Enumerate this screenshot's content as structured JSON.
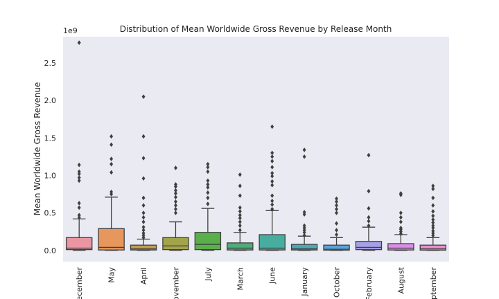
{
  "chart_data": {
    "type": "box",
    "title": "Distribution of Mean Worldwide Gross Revenue by Release Month",
    "xlabel": "",
    "ylabel": "Mean Worldwide Gross Revenue",
    "y_offset_label": "1e9",
    "y_unit_scale": 1000000000,
    "ylim": [
      -0.15,
      2.85
    ],
    "y_ticks": [
      0.0,
      0.5,
      1.0,
      1.5,
      2.0,
      2.5
    ],
    "y_tick_labels": [
      "0.0",
      "0.5",
      "1.0",
      "1.5",
      "2.0",
      "2.5"
    ],
    "grid": false,
    "background": "#eaeaf2",
    "categories": [
      "December",
      "May",
      "April",
      "November",
      "July",
      "March",
      "June",
      "January",
      "October",
      "February",
      "August",
      "September"
    ],
    "tick_labels_visible": [
      "ecember",
      "May",
      "April",
      "ovember",
      "July",
      "March",
      "June",
      "January",
      "October",
      "February",
      "August",
      "eptember"
    ],
    "colors": [
      "#ea96a3",
      "#e7975c",
      "#c39e4d",
      "#a3a44a",
      "#59b04a",
      "#4fad7b",
      "#47ad9f",
      "#4ca8b8",
      "#58a4dc",
      "#a6a0e6",
      "#da8ee7",
      "#ea8fd0"
    ],
    "series": [
      {
        "name": "December",
        "min": 0.0,
        "q1": 0.01,
        "median": 0.03,
        "q3": 0.17,
        "max": 0.42,
        "outliers": [
          0.44,
          0.47,
          0.57,
          0.63,
          0.93,
          0.97,
          1.02,
          1.05,
          1.14,
          2.77
        ]
      },
      {
        "name": "May",
        "min": 0.0,
        "q1": 0.005,
        "median": 0.04,
        "q3": 0.29,
        "max": 0.71,
        "outliers": [
          0.75,
          0.78,
          1.04,
          1.15,
          1.22,
          1.41,
          1.52
        ]
      },
      {
        "name": "April",
        "min": 0.0,
        "q1": 0.005,
        "median": 0.02,
        "q3": 0.07,
        "max": 0.15,
        "outliers": [
          0.17,
          0.2,
          0.23,
          0.27,
          0.31,
          0.38,
          0.44,
          0.5,
          0.6,
          0.7,
          0.96,
          1.23,
          1.52,
          2.05
        ]
      },
      {
        "name": "November",
        "min": 0.0,
        "q1": 0.01,
        "median": 0.06,
        "q3": 0.17,
        "max": 0.38,
        "outliers": [
          0.5,
          0.55,
          0.6,
          0.65,
          0.71,
          0.76,
          0.8,
          0.85,
          0.88,
          1.1
        ]
      },
      {
        "name": "July",
        "min": 0.0,
        "q1": 0.01,
        "median": 0.08,
        "q3": 0.24,
        "max": 0.56,
        "outliers": [
          0.62,
          0.7,
          0.77,
          0.84,
          0.88,
          0.93,
          1.05,
          1.11,
          1.15
        ]
      },
      {
        "name": "March",
        "min": 0.0,
        "q1": 0.005,
        "median": 0.03,
        "q3": 0.1,
        "max": 0.24,
        "outliers": [
          0.27,
          0.33,
          0.38,
          0.43,
          0.47,
          0.52,
          0.57,
          0.73,
          0.86,
          1.01
        ]
      },
      {
        "name": "June",
        "min": 0.0,
        "q1": 0.005,
        "median": 0.03,
        "q3": 0.21,
        "max": 0.53,
        "outliers": [
          0.55,
          0.61,
          0.66,
          0.73,
          0.87,
          0.92,
          0.99,
          1.03,
          1.11,
          1.19,
          1.25,
          1.3,
          1.65
        ]
      },
      {
        "name": "January",
        "min": 0.0,
        "q1": 0.005,
        "median": 0.02,
        "q3": 0.08,
        "max": 0.19,
        "outliers": [
          0.2,
          0.24,
          0.27,
          0.3,
          0.33,
          0.48,
          0.51,
          1.25,
          1.34
        ]
      },
      {
        "name": "October",
        "min": 0.0,
        "q1": 0.003,
        "median": 0.015,
        "q3": 0.07,
        "max": 0.17,
        "outliers": [
          0.21,
          0.27,
          0.36,
          0.5,
          0.55,
          0.6,
          0.65,
          0.69
        ]
      },
      {
        "name": "February",
        "min": 0.0,
        "q1": 0.01,
        "median": 0.04,
        "q3": 0.12,
        "max": 0.31,
        "outliers": [
          0.33,
          0.39,
          0.44,
          0.56,
          0.79,
          1.27
        ]
      },
      {
        "name": "August",
        "min": 0.0,
        "q1": 0.005,
        "median": 0.03,
        "q3": 0.09,
        "max": 0.21,
        "outliers": [
          0.22,
          0.25,
          0.28,
          0.3,
          0.38,
          0.44,
          0.5,
          0.74,
          0.76
        ]
      },
      {
        "name": "September",
        "min": 0.0,
        "q1": 0.003,
        "median": 0.02,
        "q3": 0.07,
        "max": 0.17,
        "outliers": [
          0.2,
          0.23,
          0.26,
          0.3,
          0.33,
          0.37,
          0.41,
          0.46,
          0.52,
          0.6,
          0.7,
          0.82,
          0.86
        ]
      }
    ]
  }
}
